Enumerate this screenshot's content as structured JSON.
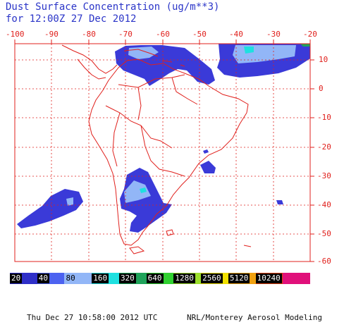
{
  "title": {
    "line1": "Dust Surface Concentration (ug/m**3)",
    "line2": "for 12:00Z 27 Dec 2012"
  },
  "axes": {
    "longitude_labels": [
      "-100",
      "-90",
      "-80",
      "-70",
      "-60",
      "-50",
      "-40",
      "-30",
      "-20"
    ],
    "latitude_labels": [
      "10",
      "0",
      "-10",
      "-20",
      "-30",
      "-40",
      "-50",
      "-60"
    ],
    "lon_range": [
      -100,
      -20
    ],
    "lat_range": [
      -60,
      15
    ]
  },
  "legend": {
    "items": [
      {
        "label": "20",
        "color": "#2f2fc8",
        "text_color": "#ffffff"
      },
      {
        "label": "40",
        "color": "#4c62f0",
        "text_color": "#ffffff"
      },
      {
        "label": "80",
        "color": "#92b6f7",
        "text_color": "#000000"
      },
      {
        "label": "160",
        "color": "#1ee0e0",
        "text_color": "#ffffff"
      },
      {
        "label": "320",
        "color": "#1fa35a",
        "text_color": "#ffffff"
      },
      {
        "label": "640",
        "color": "#30d030",
        "text_color": "#ffffff"
      },
      {
        "label": "1280",
        "color": "#9cde2c",
        "text_color": "#ffffff"
      },
      {
        "label": "2560",
        "color": "#f0e000",
        "text_color": "#ffffff"
      },
      {
        "label": "5120",
        "color": "#f0a010",
        "text_color": "#ffffff"
      },
      {
        "label": "10240",
        "color": "#e04010",
        "text_color": "#ffffff"
      },
      {
        "label": "",
        "color": "#e0107a",
        "text_color": "#ffffff"
      }
    ]
  },
  "footer": {
    "left": "Thu Dec 27 10:58:00 2012 UTC",
    "right": "NRL/Monterey Aerosol Modeling"
  },
  "colors": {
    "grid": "#e0201c",
    "coast": "#e0201c",
    "title": "#2b35c8",
    "dust_low": "#3a3ad8",
    "dust_mid": "#92b6f7",
    "dust_high": "#1ee0e0"
  }
}
